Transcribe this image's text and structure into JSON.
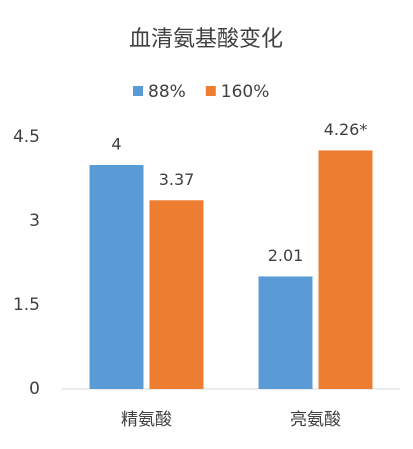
{
  "chart_data": {
    "type": "bar",
    "title": "血清氨基酸变化",
    "categories": [
      "精氨酸",
      "亮氨酸"
    ],
    "series": [
      {
        "name": "88%",
        "color": "#5b9bd5",
        "values": [
          4,
          2.01
        ]
      },
      {
        "name": "160%",
        "color": "#ed7d31",
        "values": [
          3.37,
          4.26
        ],
        "value_labels": [
          "3.37",
          "4.26*"
        ]
      }
    ],
    "ylim": [
      0,
      4.5
    ],
    "yticks": [
      0,
      1.5,
      3,
      4.5
    ],
    "legend": "top"
  }
}
